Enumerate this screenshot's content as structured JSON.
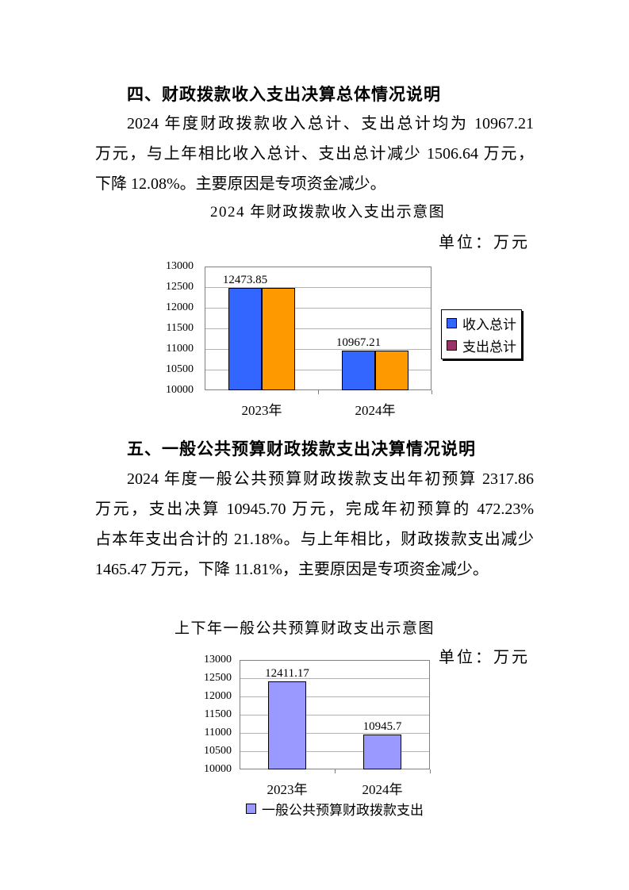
{
  "document": {
    "section4": {
      "heading": "四、财政拨款收入支出决算总体情况说明",
      "line1": "2024 年度财政拨款收入总计、支出总计均为 10967.21",
      "line2": "万元，与上年相比收入总计、支出总计减少 1506.64 万元，",
      "line3": "下降 12.08%。主要原因是专项资金减少。"
    },
    "section5": {
      "heading": "五、一般公共预算财政拨款支出决算情况说明",
      "line1": "2024 年度一般公共预算财政拨款支出年初预算 2317.86",
      "line2": "万元，支出决算 10945.70 万元，完成年初预算的 472.23%",
      "line3": "占本年支出合计的 21.18%。与上年相比，财政拨款支出减少",
      "line4": "1465.47 万元，下降 11.81%，主要原因是专项资金减少。"
    }
  },
  "chart_data": [
    {
      "type": "bar",
      "title": "2024 年财政拨款收入支出示意图",
      "unit_label": "单位：万元",
      "categories": [
        "2023年",
        "2024年"
      ],
      "series": [
        {
          "name": "收入总计",
          "color": "#3366FF",
          "legend_color": "#3366FF",
          "values": [
            12473.85,
            10967.21
          ]
        },
        {
          "name": "支出总计",
          "color": "#FF9900",
          "legend_color": "#993366",
          "values": [
            12473.85,
            10967.21
          ]
        }
      ],
      "data_labels": [
        "12473.85",
        "10967.21"
      ],
      "ylim": [
        10000,
        13000
      ],
      "yticks": [
        10000,
        10500,
        11000,
        11500,
        12000,
        12500,
        13000
      ],
      "grid": true,
      "legend_position": "right"
    },
    {
      "type": "bar",
      "title": "上下年一般公共预算财政支出示意图",
      "unit_label": "单位：万元",
      "categories": [
        "2023年",
        "2024年"
      ],
      "series": [
        {
          "name": "一般公共预算财政拨款支出",
          "color": "#9999FF",
          "legend_color": "#9999FF",
          "values": [
            12411.17,
            10945.7
          ]
        }
      ],
      "data_labels": [
        "12411.17",
        "10945.7"
      ],
      "ylim": [
        10000,
        13000
      ],
      "yticks": [
        10000,
        10500,
        11000,
        11500,
        12000,
        12500,
        13000
      ],
      "grid": true,
      "legend_position": "bottom"
    }
  ],
  "colors": {
    "income_blue": "#3366FF",
    "expense_orange": "#FF9900",
    "expense_legend_maroon": "#993366",
    "budget_periwinkle": "#9999FF",
    "gridline_gray": "#b3b3b3",
    "plot_border_gray": "#808080"
  }
}
